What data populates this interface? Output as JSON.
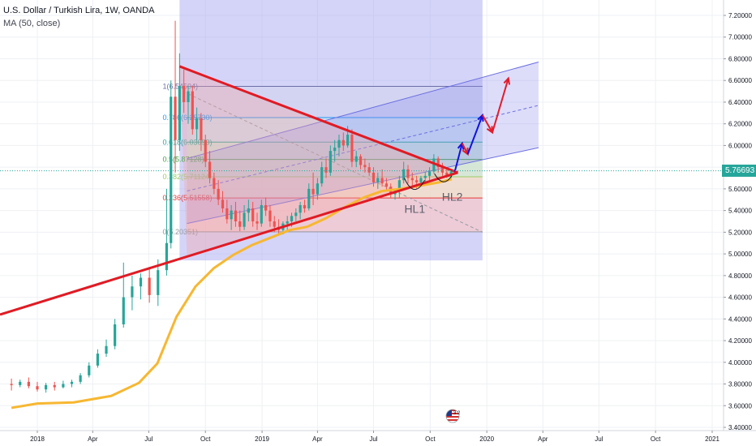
{
  "header": {
    "title": "U.S. Dollar / Turkish Lira, 1W, OANDA",
    "indicator": "MA (50, close)"
  },
  "last_price": "5.76693",
  "colors": {
    "up": "#26a69a",
    "down": "#ef5350",
    "ma": "#f7b731",
    "trendline": "#e01b24",
    "channel_fill": "#9fa0ef",
    "blue_arrow": "#1212e0",
    "red_arrow": "#e21c2b"
  },
  "icons": {
    "flag": "us-flag-icon",
    "flag_count": "3 2"
  },
  "chart_data": {
    "type": "line",
    "title": "U.S. Dollar / Turkish Lira, 1W, OANDA",
    "xlabel": "",
    "ylabel": "",
    "x_tick_labels": [
      "2018",
      "Apr",
      "Jul",
      "Oct",
      "2019",
      "Apr",
      "Jul",
      "Oct",
      "2020",
      "Apr",
      "Jul",
      "Oct",
      "2021"
    ],
    "y_tick_labels": [
      "7.20000",
      "7.00000",
      "6.80000",
      "6.60000",
      "6.40000",
      "6.20000",
      "6.00000",
      "5.80000",
      "5.60000",
      "5.40000",
      "5.20000",
      "5.00000",
      "4.80000",
      "4.60000",
      "4.40000",
      "4.20000",
      "4.00000",
      "3.80000",
      "3.60000",
      "3.40000"
    ],
    "ylim": [
      3.4,
      7.3
    ],
    "grid": true,
    "series": [
      {
        "name": "MA (50, close)",
        "x": [
          "2017-11-20",
          "2018-01-01",
          "2018-03-01",
          "2018-05-01",
          "2018-06-15",
          "2018-07-15",
          "2018-08-15",
          "2018-09-15",
          "2018-10-15",
          "2018-11-15",
          "2018-12-15",
          "2019-01-15",
          "2019-02-15",
          "2019-03-15",
          "2019-04-15",
          "2019-05-15",
          "2019-06-15",
          "2019-07-15",
          "2019-08-15",
          "2019-09-15",
          "2019-10-15",
          "2019-11-05"
        ],
        "values": [
          3.58,
          3.62,
          3.63,
          3.69,
          3.81,
          3.99,
          4.42,
          4.7,
          4.87,
          4.99,
          5.08,
          5.15,
          5.22,
          5.25,
          5.33,
          5.43,
          5.52,
          5.58,
          5.6,
          5.63,
          5.66,
          5.69
        ]
      }
    ],
    "candles": [
      {
        "t": "2017-11-20",
        "o": 3.8,
        "h": 3.85,
        "l": 3.74,
        "c": 3.79
      },
      {
        "t": "2017-12-04",
        "o": 3.79,
        "h": 3.84,
        "l": 3.77,
        "c": 3.82
      },
      {
        "t": "2017-12-18",
        "o": 3.82,
        "h": 3.86,
        "l": 3.76,
        "c": 3.78
      },
      {
        "t": "2018-01-01",
        "o": 3.78,
        "h": 3.82,
        "l": 3.73,
        "c": 3.75
      },
      {
        "t": "2018-01-15",
        "o": 3.75,
        "h": 3.81,
        "l": 3.72,
        "c": 3.79
      },
      {
        "t": "2018-01-29",
        "o": 3.79,
        "h": 3.82,
        "l": 3.74,
        "c": 3.77
      },
      {
        "t": "2018-02-12",
        "o": 3.77,
        "h": 3.83,
        "l": 3.76,
        "c": 3.8
      },
      {
        "t": "2018-02-26",
        "o": 3.8,
        "h": 3.84,
        "l": 3.77,
        "c": 3.82
      },
      {
        "t": "2018-03-12",
        "o": 3.82,
        "h": 3.9,
        "l": 3.8,
        "c": 3.88
      },
      {
        "t": "2018-03-26",
        "o": 3.88,
        "h": 4.0,
        "l": 3.86,
        "c": 3.97
      },
      {
        "t": "2018-04-09",
        "o": 3.97,
        "h": 4.12,
        "l": 3.95,
        "c": 4.08
      },
      {
        "t": "2018-04-23",
        "o": 4.08,
        "h": 4.21,
        "l": 4.05,
        "c": 4.15
      },
      {
        "t": "2018-05-07",
        "o": 4.15,
        "h": 4.4,
        "l": 4.12,
        "c": 4.35
      },
      {
        "t": "2018-05-21",
        "o": 4.35,
        "h": 4.92,
        "l": 4.32,
        "c": 4.6
      },
      {
        "t": "2018-06-04",
        "o": 4.6,
        "h": 4.8,
        "l": 4.48,
        "c": 4.7
      },
      {
        "t": "2018-06-18",
        "o": 4.7,
        "h": 4.82,
        "l": 4.58,
        "c": 4.78
      },
      {
        "t": "2018-07-02",
        "o": 4.78,
        "h": 4.88,
        "l": 4.55,
        "c": 4.62
      },
      {
        "t": "2018-07-16",
        "o": 4.62,
        "h": 4.95,
        "l": 4.52,
        "c": 4.85
      },
      {
        "t": "2018-07-30",
        "o": 4.85,
        "h": 5.6,
        "l": 4.8,
        "c": 5.1
      },
      {
        "t": "2018-08-06",
        "o": 5.1,
        "h": 6.6,
        "l": 5.05,
        "c": 6.45
      },
      {
        "t": "2018-08-13",
        "o": 6.45,
        "h": 7.15,
        "l": 5.75,
        "c": 6.05
      },
      {
        "t": "2018-08-20",
        "o": 6.05,
        "h": 6.85,
        "l": 5.95,
        "c": 6.55
      },
      {
        "t": "2018-08-27",
        "o": 6.55,
        "h": 6.7,
        "l": 6.3,
        "c": 6.4
      },
      {
        "t": "2018-09-03",
        "o": 6.4,
        "h": 6.55,
        "l": 6.2,
        "c": 6.5
      },
      {
        "t": "2018-09-10",
        "o": 6.5,
        "h": 6.55,
        "l": 6.1,
        "c": 6.15
      },
      {
        "t": "2018-09-17",
        "o": 6.15,
        "h": 6.35,
        "l": 6.05,
        "c": 6.25
      },
      {
        "t": "2018-09-24",
        "o": 6.25,
        "h": 6.3,
        "l": 5.95,
        "c": 6.05
      },
      {
        "t": "2018-10-01",
        "o": 6.05,
        "h": 6.1,
        "l": 5.8,
        "c": 5.85
      },
      {
        "t": "2018-10-08",
        "o": 5.85,
        "h": 5.95,
        "l": 5.65,
        "c": 5.7
      },
      {
        "t": "2018-10-15",
        "o": 5.7,
        "h": 5.75,
        "l": 5.55,
        "c": 5.6
      },
      {
        "t": "2018-10-22",
        "o": 5.6,
        "h": 5.68,
        "l": 5.45,
        "c": 5.5
      },
      {
        "t": "2018-10-29",
        "o": 5.5,
        "h": 5.58,
        "l": 5.38,
        "c": 5.42
      },
      {
        "t": "2018-11-05",
        "o": 5.42,
        "h": 5.5,
        "l": 5.28,
        "c": 5.32
      },
      {
        "t": "2018-11-12",
        "o": 5.32,
        "h": 5.45,
        "l": 5.22,
        "c": 5.4
      },
      {
        "t": "2018-11-19",
        "o": 5.4,
        "h": 5.48,
        "l": 5.25,
        "c": 5.3
      },
      {
        "t": "2018-11-26",
        "o": 5.3,
        "h": 5.4,
        "l": 5.21,
        "c": 5.25
      },
      {
        "t": "2018-12-03",
        "o": 5.25,
        "h": 5.45,
        "l": 5.22,
        "c": 5.38
      },
      {
        "t": "2018-12-10",
        "o": 5.38,
        "h": 5.5,
        "l": 5.3,
        "c": 5.42
      },
      {
        "t": "2018-12-17",
        "o": 5.42,
        "h": 5.48,
        "l": 5.25,
        "c": 5.3
      },
      {
        "t": "2018-12-24",
        "o": 5.3,
        "h": 5.38,
        "l": 5.22,
        "c": 5.28
      },
      {
        "t": "2018-12-31",
        "o": 5.28,
        "h": 5.5,
        "l": 5.25,
        "c": 5.45
      },
      {
        "t": "2019-01-07",
        "o": 5.45,
        "h": 5.52,
        "l": 5.35,
        "c": 5.4
      },
      {
        "t": "2019-01-14",
        "o": 5.4,
        "h": 5.45,
        "l": 5.25,
        "c": 5.3
      },
      {
        "t": "2019-01-21",
        "o": 5.3,
        "h": 5.35,
        "l": 5.2,
        "c": 5.25
      },
      {
        "t": "2019-01-28",
        "o": 5.25,
        "h": 5.32,
        "l": 5.18,
        "c": 5.22
      },
      {
        "t": "2019-02-04",
        "o": 5.22,
        "h": 5.3,
        "l": 5.18,
        "c": 5.28
      },
      {
        "t": "2019-02-11",
        "o": 5.28,
        "h": 5.35,
        "l": 5.22,
        "c": 5.3
      },
      {
        "t": "2019-02-18",
        "o": 5.3,
        "h": 5.38,
        "l": 5.25,
        "c": 5.35
      },
      {
        "t": "2019-02-25",
        "o": 5.35,
        "h": 5.42,
        "l": 5.3,
        "c": 5.38
      },
      {
        "t": "2019-03-04",
        "o": 5.38,
        "h": 5.48,
        "l": 5.32,
        "c": 5.45
      },
      {
        "t": "2019-03-11",
        "o": 5.45,
        "h": 5.5,
        "l": 5.38,
        "c": 5.42
      },
      {
        "t": "2019-03-18",
        "o": 5.42,
        "h": 5.65,
        "l": 5.4,
        "c": 5.6
      },
      {
        "t": "2019-03-25",
        "o": 5.6,
        "h": 5.75,
        "l": 5.45,
        "c": 5.55
      },
      {
        "t": "2019-04-01",
        "o": 5.55,
        "h": 5.7,
        "l": 5.5,
        "c": 5.65
      },
      {
        "t": "2019-04-08",
        "o": 5.65,
        "h": 5.85,
        "l": 5.62,
        "c": 5.8
      },
      {
        "t": "2019-04-15",
        "o": 5.8,
        "h": 5.88,
        "l": 5.7,
        "c": 5.75
      },
      {
        "t": "2019-04-22",
        "o": 5.75,
        "h": 6.0,
        "l": 5.72,
        "c": 5.95
      },
      {
        "t": "2019-04-29",
        "o": 5.95,
        "h": 6.05,
        "l": 5.85,
        "c": 5.98
      },
      {
        "t": "2019-05-06",
        "o": 5.98,
        "h": 6.1,
        "l": 5.9,
        "c": 6.05
      },
      {
        "t": "2019-05-13",
        "o": 6.05,
        "h": 6.12,
        "l": 5.95,
        "c": 6.0
      },
      {
        "t": "2019-05-20",
        "o": 6.0,
        "h": 6.18,
        "l": 5.98,
        "c": 6.1
      },
      {
        "t": "2019-05-27",
        "o": 6.1,
        "h": 6.15,
        "l": 5.8,
        "c": 5.85
      },
      {
        "t": "2019-06-03",
        "o": 5.85,
        "h": 5.95,
        "l": 5.8,
        "c": 5.9
      },
      {
        "t": "2019-06-10",
        "o": 5.9,
        "h": 5.92,
        "l": 5.78,
        "c": 5.82
      },
      {
        "t": "2019-06-17",
        "o": 5.82,
        "h": 5.88,
        "l": 5.75,
        "c": 5.8
      },
      {
        "t": "2019-06-24",
        "o": 5.8,
        "h": 5.84,
        "l": 5.72,
        "c": 5.75
      },
      {
        "t": "2019-07-01",
        "o": 5.75,
        "h": 5.8,
        "l": 5.62,
        "c": 5.66
      },
      {
        "t": "2019-07-08",
        "o": 5.66,
        "h": 5.75,
        "l": 5.6,
        "c": 5.7
      },
      {
        "t": "2019-07-15",
        "o": 5.7,
        "h": 5.78,
        "l": 5.62,
        "c": 5.65
      },
      {
        "t": "2019-07-22",
        "o": 5.65,
        "h": 5.7,
        "l": 5.58,
        "c": 5.62
      },
      {
        "t": "2019-07-29",
        "o": 5.62,
        "h": 5.65,
        "l": 5.52,
        "c": 5.55
      },
      {
        "t": "2019-08-05",
        "o": 5.55,
        "h": 5.6,
        "l": 5.5,
        "c": 5.58
      },
      {
        "t": "2019-08-12",
        "o": 5.58,
        "h": 5.72,
        "l": 5.52,
        "c": 5.68
      },
      {
        "t": "2019-08-19",
        "o": 5.68,
        "h": 5.85,
        "l": 5.65,
        "c": 5.78
      },
      {
        "t": "2019-08-26",
        "o": 5.78,
        "h": 5.82,
        "l": 5.65,
        "c": 5.7
      },
      {
        "t": "2019-09-02",
        "o": 5.7,
        "h": 5.75,
        "l": 5.62,
        "c": 5.68
      },
      {
        "t": "2019-09-09",
        "o": 5.68,
        "h": 5.72,
        "l": 5.6,
        "c": 5.66
      },
      {
        "t": "2019-09-16",
        "o": 5.66,
        "h": 5.72,
        "l": 5.62,
        "c": 5.7
      },
      {
        "t": "2019-09-23",
        "o": 5.7,
        "h": 5.76,
        "l": 5.65,
        "c": 5.72
      },
      {
        "t": "2019-09-30",
        "o": 5.72,
        "h": 5.8,
        "l": 5.68,
        "c": 5.76
      },
      {
        "t": "2019-10-07",
        "o": 5.76,
        "h": 5.92,
        "l": 5.74,
        "c": 5.88
      },
      {
        "t": "2019-10-14",
        "o": 5.88,
        "h": 5.9,
        "l": 5.75,
        "c": 5.8
      },
      {
        "t": "2019-10-21",
        "o": 5.8,
        "h": 5.84,
        "l": 5.72,
        "c": 5.75
      },
      {
        "t": "2019-10-28",
        "o": 5.75,
        "h": 5.8,
        "l": 5.7,
        "c": 5.72
      },
      {
        "t": "2019-11-04",
        "o": 5.72,
        "h": 5.78,
        "l": 5.7,
        "c": 5.76
      }
    ],
    "fibonacci": [
      {
        "label": "0(5.20351)",
        "value": 5.20351
      },
      {
        "label": "0.236(5.51558)",
        "value": 5.51558
      },
      {
        "label": "0.382(5.71124)",
        "value": 5.71124
      },
      {
        "label": "0.5(5.87128)",
        "value": 5.87128
      },
      {
        "label": "0.618(6.03093)",
        "value": 6.03093
      },
      {
        "label": "0.786(6.25730)",
        "value": 6.2573
      },
      {
        "label": "1(6.54504)",
        "value": 6.54504
      }
    ],
    "annotations": [
      "HL1",
      "HL2"
    ]
  }
}
